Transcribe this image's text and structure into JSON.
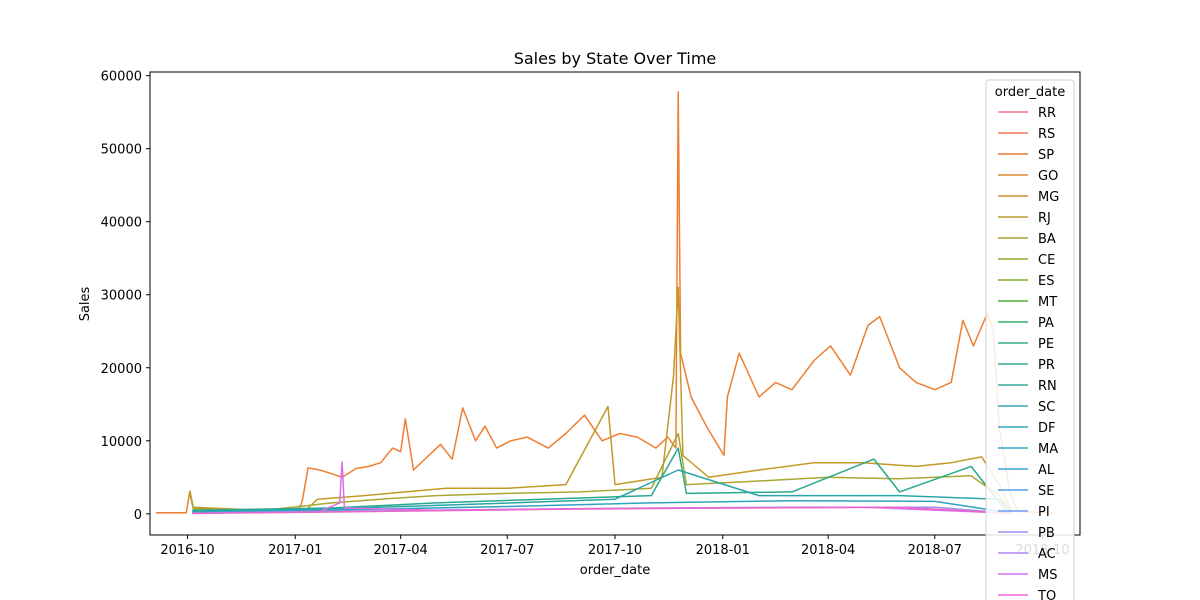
{
  "chart_data": {
    "type": "line",
    "title": "Sales by State Over Time",
    "xlabel": "order_date",
    "ylabel": "Sales",
    "xlim": [
      "2016-08-30",
      "2018-11-02"
    ],
    "ylim": [
      -2900,
      60500
    ],
    "x_ticks": [
      "2016-10",
      "2017-01",
      "2017-04",
      "2017-07",
      "2017-10",
      "2018-01",
      "2018-04",
      "2018-07",
      "2018-10"
    ],
    "y_ticks": [
      0,
      10000,
      20000,
      30000,
      40000,
      50000,
      60000
    ],
    "y_tick_labels": [
      "0",
      "10000",
      "20000",
      "30000",
      "40000",
      "50000",
      "60000"
    ],
    "grid": false,
    "legend": {
      "title": "order_date",
      "placement": "top-right",
      "entries": [
        "RR",
        "RS",
        "SP",
        "GO",
        "MG",
        "RJ",
        "BA",
        "CE",
        "ES",
        "MT",
        "PA",
        "PE",
        "PR",
        "RN",
        "SC",
        "DF",
        "MA",
        "AL",
        "SE",
        "PI",
        "PB",
        "AC",
        "MS",
        "TO"
      ]
    },
    "series": [
      {
        "name": "SP",
        "color": "#ec7f32",
        "points": [
          [
            "2016-09-04",
            150
          ],
          [
            "2016-09-30",
            150
          ],
          [
            "2016-10-03",
            3100
          ],
          [
            "2016-10-06",
            800
          ],
          [
            "2016-10-30",
            600
          ],
          [
            "2016-12-01",
            300
          ],
          [
            "2017-01-04",
            500
          ],
          [
            "2017-01-07",
            1800
          ],
          [
            "2017-01-12",
            6300
          ],
          [
            "2017-01-22",
            6000
          ],
          [
            "2017-02-01",
            5500
          ],
          [
            "2017-02-10",
            5000
          ],
          [
            "2017-02-22",
            6200
          ],
          [
            "2017-03-05",
            6500
          ],
          [
            "2017-03-15",
            7000
          ],
          [
            "2017-03-25",
            9000
          ],
          [
            "2017-04-01",
            8500
          ],
          [
            "2017-04-05",
            13000
          ],
          [
            "2017-04-12",
            6000
          ],
          [
            "2017-04-25",
            8000
          ],
          [
            "2017-05-05",
            9500
          ],
          [
            "2017-05-15",
            7500
          ],
          [
            "2017-05-24",
            14500
          ],
          [
            "2017-06-04",
            10000
          ],
          [
            "2017-06-12",
            12000
          ],
          [
            "2017-06-22",
            9000
          ],
          [
            "2017-07-04",
            10000
          ],
          [
            "2017-07-18",
            10500
          ],
          [
            "2017-08-05",
            9000
          ],
          [
            "2017-08-20",
            11000
          ],
          [
            "2017-09-05",
            13500
          ],
          [
            "2017-09-20",
            10000
          ],
          [
            "2017-10-05",
            11000
          ],
          [
            "2017-10-20",
            10500
          ],
          [
            "2017-11-05",
            9000
          ],
          [
            "2017-11-15",
            10500
          ],
          [
            "2017-11-22",
            9000
          ],
          [
            "2017-11-24",
            57800
          ],
          [
            "2017-11-26",
            22000
          ],
          [
            "2017-12-05",
            16000
          ],
          [
            "2017-12-18",
            12000
          ],
          [
            "2018-01-02",
            8000
          ],
          [
            "2018-01-05",
            16000
          ],
          [
            "2018-01-15",
            22000
          ],
          [
            "2018-02-01",
            16000
          ],
          [
            "2018-02-15",
            18000
          ],
          [
            "2018-03-01",
            17000
          ],
          [
            "2018-03-20",
            21000
          ],
          [
            "2018-04-03",
            23000
          ],
          [
            "2018-04-20",
            19000
          ],
          [
            "2018-05-05",
            25800
          ],
          [
            "2018-05-15",
            27000
          ],
          [
            "2018-06-01",
            20000
          ],
          [
            "2018-06-15",
            18000
          ],
          [
            "2018-07-01",
            17000
          ],
          [
            "2018-07-15",
            18000
          ],
          [
            "2018-07-25",
            26500
          ],
          [
            "2018-08-03",
            23000
          ],
          [
            "2018-08-15",
            27500
          ],
          [
            "2018-08-20",
            25000
          ],
          [
            "2018-08-25",
            12000
          ],
          [
            "2018-08-30",
            7000
          ],
          [
            "2018-09-03",
            3000
          ],
          [
            "2018-09-10",
            300
          ],
          [
            "2018-10-10",
            100
          ]
        ]
      },
      {
        "name": "MG",
        "color": "#c49a27",
        "points": [
          [
            "2016-10-03",
            3200
          ],
          [
            "2016-10-06",
            900
          ],
          [
            "2016-11-15",
            600
          ],
          [
            "2017-01-10",
            500
          ],
          [
            "2017-01-20",
            2000
          ],
          [
            "2017-03-01",
            2500
          ],
          [
            "2017-04-05",
            3000
          ],
          [
            "2017-05-10",
            3500
          ],
          [
            "2017-07-01",
            3500
          ],
          [
            "2017-08-20",
            4000
          ],
          [
            "2017-09-25",
            14700
          ],
          [
            "2017-10-01",
            4000
          ],
          [
            "2017-11-10",
            5000
          ],
          [
            "2017-11-20",
            19000
          ],
          [
            "2017-11-24",
            31000
          ],
          [
            "2017-11-28",
            8000
          ],
          [
            "2017-12-20",
            5000
          ],
          [
            "2018-02-01",
            6000
          ],
          [
            "2018-03-20",
            7000
          ],
          [
            "2018-05-01",
            7000
          ],
          [
            "2018-06-15",
            6500
          ],
          [
            "2018-07-15",
            7000
          ],
          [
            "2018-08-10",
            7800
          ],
          [
            "2018-08-25",
            4000
          ],
          [
            "2018-09-05",
            300
          ]
        ]
      },
      {
        "name": "RJ",
        "color": "#a7a831",
        "points": [
          [
            "2016-10-03",
            2800
          ],
          [
            "2016-10-06",
            700
          ],
          [
            "2016-12-01",
            400
          ],
          [
            "2017-02-01",
            1500
          ],
          [
            "2017-03-15",
            2000
          ],
          [
            "2017-05-01",
            2500
          ],
          [
            "2017-07-01",
            2800
          ],
          [
            "2017-09-01",
            3000
          ],
          [
            "2017-11-01",
            3500
          ],
          [
            "2017-11-24",
            11000
          ],
          [
            "2017-12-01",
            4000
          ],
          [
            "2018-02-01",
            4500
          ],
          [
            "2018-04-01",
            5000
          ],
          [
            "2018-06-01",
            4800
          ],
          [
            "2018-08-01",
            5200
          ],
          [
            "2018-08-25",
            2500
          ],
          [
            "2018-09-05",
            200
          ]
        ]
      },
      {
        "name": "PR",
        "color": "#2aa88c",
        "points": [
          [
            "2016-10-05",
            500
          ],
          [
            "2017-02-01",
            800
          ],
          [
            "2017-05-01",
            1500
          ],
          [
            "2017-08-01",
            2000
          ],
          [
            "2017-11-01",
            2500
          ],
          [
            "2017-11-24",
            9000
          ],
          [
            "2017-12-01",
            2800
          ],
          [
            "2018-03-01",
            3000
          ],
          [
            "2018-05-10",
            7500
          ],
          [
            "2018-06-01",
            3000
          ],
          [
            "2018-08-01",
            6500
          ],
          [
            "2018-09-01",
            200
          ]
        ]
      },
      {
        "name": "SC",
        "color": "#2aa6a9",
        "points": [
          [
            "2016-10-05",
            300
          ],
          [
            "2017-02-01",
            700
          ],
          [
            "2017-06-01",
            1300
          ],
          [
            "2017-10-01",
            2000
          ],
          [
            "2017-11-24",
            6000
          ],
          [
            "2018-02-01",
            2500
          ],
          [
            "2018-06-01",
            2500
          ],
          [
            "2018-08-25",
            2000
          ],
          [
            "2018-09-05",
            100
          ]
        ]
      },
      {
        "name": "DF",
        "color": "#2fa3be",
        "points": [
          [
            "2016-10-05",
            200
          ],
          [
            "2017-03-01",
            600
          ],
          [
            "2017-07-01",
            1000
          ],
          [
            "2017-11-01",
            1500
          ],
          [
            "2018-03-01",
            1800
          ],
          [
            "2018-07-01",
            1700
          ],
          [
            "2018-09-05",
            100
          ]
        ]
      },
      {
        "name": "PB",
        "color": "#9e8ee9",
        "points": [
          [
            "2016-10-05",
            100
          ],
          [
            "2017-03-01",
            400
          ],
          [
            "2017-07-01",
            600
          ],
          [
            "2017-11-01",
            800
          ],
          [
            "2018-03-01",
            900
          ],
          [
            "2018-07-01",
            900
          ],
          [
            "2018-09-05",
            50
          ]
        ]
      },
      {
        "name": "MS",
        "color": "#dc6cea",
        "points": [
          [
            "2017-01-20",
            200
          ],
          [
            "2017-02-08",
            1500
          ],
          [
            "2017-02-10",
            7100
          ],
          [
            "2017-02-12",
            800
          ],
          [
            "2017-05-01",
            500
          ],
          [
            "2017-09-01",
            700
          ],
          [
            "2018-01-01",
            800
          ],
          [
            "2018-05-01",
            900
          ],
          [
            "2018-09-01",
            100
          ]
        ]
      },
      {
        "name": "TO",
        "color": "#ea66ca",
        "points": [
          [
            "2016-10-05",
            50
          ],
          [
            "2017-03-01",
            300
          ],
          [
            "2017-08-01",
            600
          ],
          [
            "2018-01-01",
            800
          ],
          [
            "2018-06-01",
            900
          ],
          [
            "2018-09-05",
            50
          ]
        ]
      }
    ],
    "legend_colors": [
      "#f77189",
      "#f2765d",
      "#ec7f32",
      "#dc8932",
      "#c9922f",
      "#b89b2f",
      "#a8a230",
      "#97a731",
      "#7dae31",
      "#4fb132",
      "#32b166",
      "#33af82",
      "#34ad92",
      "#35aba1",
      "#36a9ad",
      "#37a7b9",
      "#38a5c7",
      "#3aa2d9",
      "#50a0e7",
      "#6f9af2",
      "#9690f4",
      "#b385f4",
      "#d573f4",
      "#f368df"
    ]
  }
}
